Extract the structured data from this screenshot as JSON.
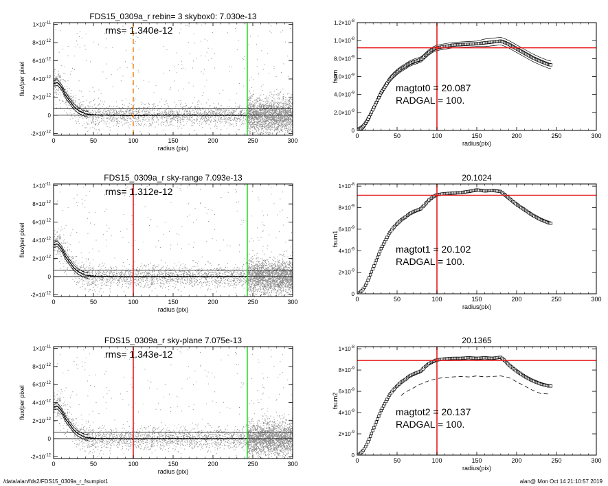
{
  "footer": {
    "left": "/data/alan/fds2/FDS15_0309a_r_fsumplot1",
    "right": "alan@  Mon Oct 14 21:10:57 2019"
  },
  "colors": {
    "red": "#e8191c",
    "green": "#21d421",
    "orange": "#f08a24",
    "scatter": "#8a8a8a",
    "line": "#000000"
  },
  "chart_data": [
    {
      "type": "scatter",
      "title": "FDS15_0309a_r rebin= 3    skybox0:  7.030e-13",
      "annotation": "rms= 1.340e-12",
      "xlabel": "radius (pix)",
      "ylabel": "flux/per pixel",
      "xlim": [
        0,
        300
      ],
      "ylim": [
        -2.2e-12,
        1.02e-11
      ],
      "xticks": [
        0,
        50,
        100,
        150,
        200,
        250,
        300
      ],
      "yticks": [
        {
          "v": 1e-11,
          "m": "1×10",
          "e": "-11"
        },
        {
          "v": 8e-12,
          "m": "8×10",
          "e": "-12"
        },
        {
          "v": 6e-12,
          "m": "6×10",
          "e": "-12"
        },
        {
          "v": 4e-12,
          "m": "4×10",
          "e": "-12"
        },
        {
          "v": 2e-12,
          "m": "2×10",
          "e": "-12"
        },
        {
          "v": 0,
          "m": "0",
          "e": ""
        },
        {
          "v": -2e-12,
          "m": "-2×10",
          "e": "-12"
        }
      ],
      "hlines": [
        0,
        7.03e-13
      ],
      "vlines": [
        {
          "x": 100,
          "color": "orange",
          "dashed": true
        },
        {
          "x": 243,
          "color": "green",
          "dashed": false
        }
      ],
      "profile": [
        [
          0,
          3.5e-12
        ],
        [
          5,
          3.6e-12
        ],
        [
          10,
          3.1e-12
        ],
        [
          15,
          2.2e-12
        ],
        [
          20,
          1.6e-12
        ],
        [
          25,
          1e-12
        ],
        [
          30,
          6e-13
        ],
        [
          35,
          3.5e-13
        ],
        [
          40,
          1.5e-13
        ],
        [
          50,
          5e-14
        ],
        [
          60,
          2e-14
        ],
        [
          80,
          0
        ],
        [
          100,
          -3e-14
        ],
        [
          140,
          2e-14
        ],
        [
          200,
          0
        ],
        [
          243,
          0
        ]
      ],
      "profile_band": 3e-13
    },
    {
      "type": "line",
      "title": "",
      "ylabel": "fsum",
      "xlabel": "radius(pix)",
      "xlim": [
        0,
        300
      ],
      "ylim": [
        0,
        1.2e-08
      ],
      "xticks": [
        0,
        50,
        100,
        150,
        200,
        250,
        300
      ],
      "yticks": [
        {
          "v": 0,
          "m": "0",
          "e": ""
        },
        {
          "v": 2e-09,
          "m": "2.0×10",
          "e": "-9"
        },
        {
          "v": 4e-09,
          "m": "4.0×10",
          "e": "-9"
        },
        {
          "v": 6e-09,
          "m": "6.0×10",
          "e": "-9"
        },
        {
          "v": 8e-09,
          "m": "8.0×10",
          "e": "-9"
        },
        {
          "v": 1e-08,
          "m": "1.0×10",
          "e": "-8"
        },
        {
          "v": 1.2e-08,
          "m": "1.2×10",
          "e": "-8"
        }
      ],
      "hline": 9.2e-09,
      "vline": 100,
      "annotations": [
        "magtot0 =  20.087",
        "RADGAL =    100."
      ],
      "x": [
        0,
        3,
        6,
        9,
        12,
        15,
        20,
        25,
        30,
        35,
        40,
        45,
        50,
        55,
        60,
        65,
        70,
        75,
        80,
        85,
        90,
        95,
        100,
        110,
        120,
        130,
        140,
        150,
        160,
        170,
        180,
        185,
        190,
        200,
        210,
        220,
        230,
        240,
        243
      ],
      "y": [
        0,
        1e-10,
        3e-10,
        6e-10,
        1e-09,
        1.5e-09,
        2.4e-09,
        3.3e-09,
        4.2e-09,
        4.9e-09,
        5.6e-09,
        6.1e-09,
        6.5e-09,
        6.85e-09,
        7.1e-09,
        7.4e-09,
        7.6e-09,
        7.75e-09,
        7.9e-09,
        8.3e-09,
        8.7e-09,
        9e-09,
        9.2e-09,
        9.35e-09,
        9.5e-09,
        9.55e-09,
        9.6e-09,
        9.65e-09,
        9.75e-09,
        9.85e-09,
        9.95e-09,
        9.8e-09,
        9.6e-09,
        9.1e-09,
        8.6e-09,
        8.1e-09,
        7.7e-09,
        7.35e-09,
        7.3e-09
      ],
      "band": 3e-10
    },
    {
      "type": "scatter",
      "title": "FDS15_0309a_r sky-range  7.093e-13",
      "annotation": "rms= 1.312e-12",
      "xlabel": "radius (pix)",
      "ylabel": "flux/per pixel",
      "xlim": [
        0,
        300
      ],
      "ylim": [
        -2.2e-12,
        1.02e-11
      ],
      "xticks": [
        0,
        50,
        100,
        150,
        200,
        250,
        300
      ],
      "yticks": [
        {
          "v": 1e-11,
          "m": "1×10",
          "e": "-11"
        },
        {
          "v": 8e-12,
          "m": "8×10",
          "e": "-12"
        },
        {
          "v": 6e-12,
          "m": "6×10",
          "e": "-12"
        },
        {
          "v": 4e-12,
          "m": "4×10",
          "e": "-12"
        },
        {
          "v": 2e-12,
          "m": "2×10",
          "e": "-12"
        },
        {
          "v": 0,
          "m": "0",
          "e": ""
        },
        {
          "v": -2e-12,
          "m": "-2×10",
          "e": "-12"
        }
      ],
      "hlines": [
        0,
        7.093e-13
      ],
      "vlines": [
        {
          "x": 100,
          "color": "red",
          "dashed": false
        },
        {
          "x": 243,
          "color": "green",
          "dashed": false
        }
      ],
      "profile": [
        [
          0,
          3.5e-12
        ],
        [
          5,
          3.6e-12
        ],
        [
          10,
          3.1e-12
        ],
        [
          15,
          2.2e-12
        ],
        [
          20,
          1.6e-12
        ],
        [
          25,
          1e-12
        ],
        [
          30,
          6e-13
        ],
        [
          35,
          3.5e-13
        ],
        [
          40,
          1.5e-13
        ],
        [
          50,
          5e-14
        ],
        [
          60,
          2e-14
        ],
        [
          80,
          0
        ],
        [
          100,
          -3e-14
        ],
        [
          140,
          2e-14
        ],
        [
          200,
          0
        ],
        [
          243,
          0
        ]
      ],
      "profile_band": 3e-13
    },
    {
      "type": "line",
      "title": "20.1024",
      "ylabel": "fsum1",
      "xlabel": "radius(pix)",
      "xlim": [
        0,
        300
      ],
      "ylim": [
        0,
        1.02e-08
      ],
      "xticks": [
        0,
        50,
        100,
        150,
        200,
        250,
        300
      ],
      "yticks": [
        {
          "v": 0,
          "m": "0",
          "e": ""
        },
        {
          "v": 2e-09,
          "m": "2×10",
          "e": "-9"
        },
        {
          "v": 4e-09,
          "m": "4×10",
          "e": "-9"
        },
        {
          "v": 6e-09,
          "m": "6×10",
          "e": "-9"
        },
        {
          "v": 8e-09,
          "m": "8×10",
          "e": "-9"
        },
        {
          "v": 1e-08,
          "m": "1×10",
          "e": "-8"
        }
      ],
      "hline": 9.15e-09,
      "vline": 100,
      "annotations": [
        "magtot1 =  20.102",
        "RADGAL =    100."
      ],
      "x": [
        0,
        3,
        6,
        9,
        12,
        15,
        20,
        25,
        30,
        35,
        40,
        45,
        50,
        55,
        60,
        65,
        70,
        75,
        80,
        85,
        90,
        95,
        100,
        110,
        120,
        130,
        140,
        150,
        160,
        170,
        180,
        185,
        190,
        200,
        210,
        220,
        230,
        240,
        243
      ],
      "y": [
        0,
        1e-10,
        3e-10,
        6e-10,
        1e-09,
        1.5e-09,
        2.4e-09,
        3.3e-09,
        4.2e-09,
        4.9e-09,
        5.6e-09,
        6.1e-09,
        6.5e-09,
        6.85e-09,
        7.1e-09,
        7.4e-09,
        7.6e-09,
        7.75e-09,
        7.9e-09,
        8.3e-09,
        8.7e-09,
        9e-09,
        9.2e-09,
        9.3e-09,
        9.35e-09,
        9.4e-09,
        9.5e-09,
        9.65e-09,
        9.55e-09,
        9.6e-09,
        9.5e-09,
        9.2e-09,
        8.9e-09,
        8.3e-09,
        7.8e-09,
        7.3e-09,
        6.9e-09,
        6.6e-09,
        6.55e-09
      ],
      "markers": true
    },
    {
      "type": "scatter",
      "title": "FDS15_0309a_r sky-plane  7.075e-13",
      "annotation": "rms= 1.343e-12",
      "xlabel": "radius (pix)",
      "ylabel": "flux/per pixel",
      "xlim": [
        0,
        300
      ],
      "ylim": [
        -2.2e-12,
        1.02e-11
      ],
      "xticks": [
        0,
        50,
        100,
        150,
        200,
        250,
        300
      ],
      "yticks": [
        {
          "v": 1e-11,
          "m": "1×10",
          "e": "-11"
        },
        {
          "v": 8e-12,
          "m": "8×10",
          "e": "-12"
        },
        {
          "v": 6e-12,
          "m": "6×10",
          "e": "-12"
        },
        {
          "v": 4e-12,
          "m": "4×10",
          "e": "-12"
        },
        {
          "v": 2e-12,
          "m": "2×10",
          "e": "-12"
        },
        {
          "v": 0,
          "m": "0",
          "e": ""
        },
        {
          "v": -2e-12,
          "m": "-2×10",
          "e": "-12"
        }
      ],
      "hlines": [
        0,
        7.075e-13
      ],
      "vlines": [
        {
          "x": 100,
          "color": "red",
          "dashed": false
        },
        {
          "x": 243,
          "color": "green",
          "dashed": false
        }
      ],
      "profile": [
        [
          0,
          3.5e-12
        ],
        [
          5,
          3.6e-12
        ],
        [
          10,
          3.1e-12
        ],
        [
          15,
          2.2e-12
        ],
        [
          20,
          1.6e-12
        ],
        [
          25,
          1e-12
        ],
        [
          30,
          6e-13
        ],
        [
          35,
          3.5e-13
        ],
        [
          40,
          1.5e-13
        ],
        [
          50,
          5e-14
        ],
        [
          60,
          2e-14
        ],
        [
          80,
          0
        ],
        [
          100,
          -3e-14
        ],
        [
          140,
          2e-14
        ],
        [
          200,
          0
        ],
        [
          243,
          0
        ]
      ],
      "profile_band": 3e-13
    },
    {
      "type": "line",
      "title": "20.1365",
      "ylabel": "fsum2",
      "xlabel": "radius(pix)",
      "xlim": [
        0,
        300
      ],
      "ylim": [
        0,
        1.02e-08
      ],
      "xticks": [
        0,
        50,
        100,
        150,
        200,
        250,
        300
      ],
      "yticks": [
        {
          "v": 0,
          "m": "0",
          "e": ""
        },
        {
          "v": 2e-09,
          "m": "2×10",
          "e": "-9"
        },
        {
          "v": 4e-09,
          "m": "4×10",
          "e": "-9"
        },
        {
          "v": 6e-09,
          "m": "6×10",
          "e": "-9"
        },
        {
          "v": 8e-09,
          "m": "8×10",
          "e": "-9"
        },
        {
          "v": 1e-08,
          "m": "1×10",
          "e": "-8"
        }
      ],
      "hline": 8.9e-09,
      "vline": 100,
      "annotations": [
        "magtot2 =  20.137",
        "RADGAL =    100."
      ],
      "x": [
        0,
        3,
        6,
        9,
        12,
        15,
        20,
        25,
        30,
        35,
        40,
        45,
        50,
        55,
        60,
        65,
        70,
        75,
        80,
        85,
        90,
        95,
        100,
        110,
        120,
        130,
        140,
        150,
        160,
        170,
        180,
        185,
        190,
        200,
        210,
        220,
        230,
        240,
        243
      ],
      "y": [
        0,
        1e-10,
        3e-10,
        6e-10,
        1e-09,
        1.5e-09,
        2.4e-09,
        3.3e-09,
        4.2e-09,
        4.9e-09,
        5.6e-09,
        6.1e-09,
        6.5e-09,
        6.85e-09,
        7.1e-09,
        7.4e-09,
        7.6e-09,
        7.75e-09,
        7.9e-09,
        8.3e-09,
        8.6e-09,
        8.8e-09,
        8.95e-09,
        9.05e-09,
        9.1e-09,
        9.1e-09,
        9.15e-09,
        9.1e-09,
        9.15e-09,
        9.1e-09,
        9.2e-09,
        8.9e-09,
        8.5e-09,
        7.9e-09,
        7.4e-09,
        7e-09,
        6.7e-09,
        6.5e-09,
        6.5e-09
      ],
      "markers": true,
      "dashed_series": {
        "x": [
          55,
          60,
          70,
          80,
          90,
          100,
          110,
          120,
          130,
          140,
          150,
          160,
          170,
          180,
          190,
          200,
          210,
          220,
          230,
          240
        ],
        "y": [
          5.6e-09,
          5.9e-09,
          6.3e-09,
          6.7e-09,
          7e-09,
          7.2e-09,
          7.3e-09,
          7.35e-09,
          7.4e-09,
          7.35e-09,
          7.45e-09,
          7.35e-09,
          7.4e-09,
          7.45e-09,
          7.3e-09,
          6.9e-09,
          6.5e-09,
          6.1e-09,
          5.8e-09,
          5.75e-09
        ]
      }
    }
  ]
}
